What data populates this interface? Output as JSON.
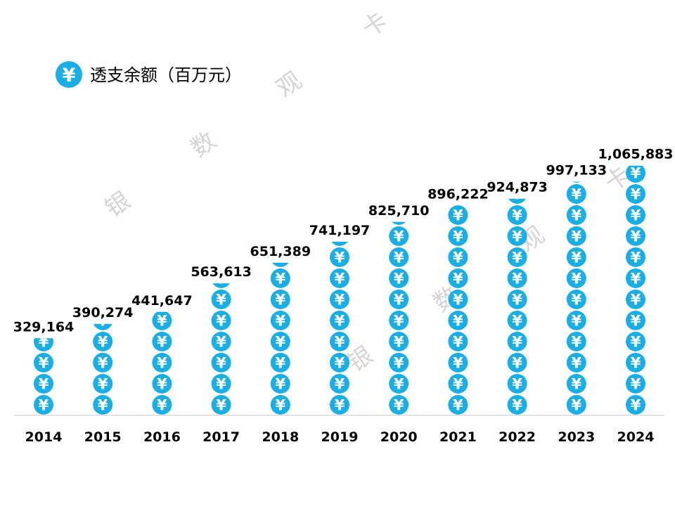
{
  "chart_data": {
    "type": "bar",
    "title": "",
    "xlabel": "",
    "ylabel": "",
    "legend": {
      "label": "透支余额（百万元）",
      "position": "top-left",
      "symbol": "¥"
    },
    "categories": [
      "2014",
      "2015",
      "2016",
      "2017",
      "2018",
      "2019",
      "2020",
      "2021",
      "2022",
      "2023",
      "2024"
    ],
    "values": [
      329164,
      390274,
      441647,
      563613,
      651389,
      741197,
      825710,
      896222,
      924873,
      997133,
      1065883
    ],
    "value_labels": [
      "329,164",
      "390,274",
      "441,647",
      "563,613",
      "651,389",
      "741,197",
      "825,710",
      "896,222",
      "924,873",
      "997,133",
      "1,065,883"
    ],
    "units_per_symbol": 90000,
    "ylim": [
      0,
      1080000
    ],
    "grid": false
  },
  "watermark": {
    "text": "银 数 观 卡"
  },
  "colors": {
    "symbol": "#1aaee6",
    "axis": "#d9d9d9",
    "text": "#000000",
    "watermark": "#d4d4d4"
  }
}
